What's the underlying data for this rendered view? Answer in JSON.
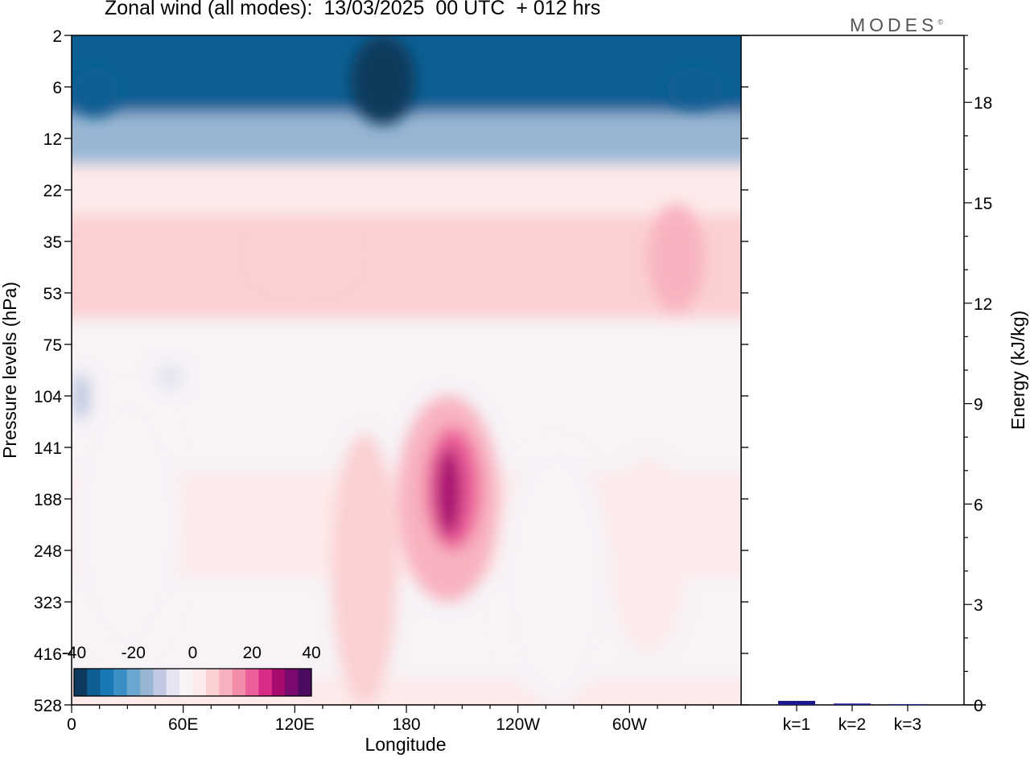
{
  "title": "Zonal wind (all modes):  13/03/2025  00 UTC  + 012 hrs",
  "brand": "MODES",
  "brand_mark": "©",
  "chart_data": [
    {
      "type": "heatmap",
      "title": "Zonal wind (all modes):  13/03/2025  00 UTC  + 012 hrs",
      "xlabel": "Longitude",
      "ylabel": "Pressure levels (hPa)",
      "x_ticks": [
        "0",
        "60E",
        "120E",
        "180",
        "120W",
        "60W"
      ],
      "y_ticks": [
        "2",
        "6",
        "12",
        "22",
        "35",
        "53",
        "75",
        "104",
        "141",
        "188",
        "248",
        "323",
        "416",
        "528"
      ],
      "colorbar_ticks": [
        "-40",
        "-20",
        "0",
        "20",
        "40"
      ],
      "colorbar_range": [
        -40,
        40
      ],
      "colorbar_colors": [
        "#0c3a5c",
        "#0f5f94",
        "#1878b5",
        "#3a8fc4",
        "#6aa6d0",
        "#98b6d4",
        "#c0c9e1",
        "#e4e5f1",
        "#f7f3f7",
        "#fdeaea",
        "#fbd0d2",
        "#f8b2bf",
        "#f28ca8",
        "#ec5f9a",
        "#d72d86",
        "#a80b70",
        "#7a0a6e",
        "#4b0b60"
      ],
      "grid": false,
      "legend": "bottom-left",
      "bands": [
        {
          "level": "2",
          "value": -33
        },
        {
          "level": "6",
          "value": -32
        },
        {
          "level": "12",
          "value": -15
        },
        {
          "level": "22",
          "value": 2
        },
        {
          "level": "35",
          "value": 6
        },
        {
          "level": "53",
          "value": 5
        },
        {
          "level": "75",
          "value": -1
        },
        {
          "level": "104",
          "value": -3
        },
        {
          "level": "141",
          "value": -1
        },
        {
          "level": "188",
          "value": 0
        },
        {
          "level": "248",
          "value": 0
        },
        {
          "level": "323",
          "value": -1
        },
        {
          "level": "416",
          "value": -1
        },
        {
          "level": "528",
          "value": 0
        }
      ],
      "features": [
        {
          "lon_from": 150,
          "lon_to": 185,
          "level_from": "2",
          "level_to": "10",
          "value": -40
        },
        {
          "lon_from": 0,
          "lon_to": 25,
          "level_from": "4",
          "level_to": "9",
          "value": -32
        },
        {
          "lon_from": 320,
          "lon_to": 350,
          "level_from": "4",
          "level_to": "8",
          "value": -35
        },
        {
          "lon_from": 175,
          "lon_to": 230,
          "level_from": "104",
          "level_to": "323",
          "value": 12
        },
        {
          "lon_from": 190,
          "lon_to": 220,
          "level_from": "125",
          "level_to": "248",
          "value": 22
        },
        {
          "lon_from": 196,
          "lon_to": 210,
          "level_from": "141",
          "level_to": "230",
          "value": 30
        },
        {
          "lon_from": 0,
          "lon_to": 10,
          "level_from": "90",
          "level_to": "120",
          "value": -12
        },
        {
          "lon_from": 45,
          "lon_to": 60,
          "level_from": "85",
          "level_to": "100",
          "value": -8
        },
        {
          "lon_from": 310,
          "lon_to": 340,
          "level_from": "25",
          "level_to": "60",
          "value": 10
        },
        {
          "lon_from": 100,
          "lon_to": 150,
          "level_from": "30",
          "level_to": "50",
          "value": 7
        },
        {
          "lon_from": 140,
          "lon_to": 175,
          "level_from": "130",
          "level_to": "528",
          "value": 5
        },
        {
          "lon_from": 0,
          "lon_to": 60,
          "level_from": "104",
          "level_to": "416",
          "value": -3
        },
        {
          "lon_from": 230,
          "lon_to": 290,
          "level_from": "141",
          "level_to": "528",
          "value": -4
        },
        {
          "lon_from": 290,
          "lon_to": 330,
          "level_from": "150",
          "level_to": "416",
          "value": 3
        }
      ]
    },
    {
      "type": "bar",
      "ylabel": "Energy (kJ/kg)",
      "categories": [
        "k=1",
        "k=2",
        "k=3"
      ],
      "values": [
        0.12,
        0.04,
        0.02
      ],
      "ylim": [
        0,
        20
      ],
      "y_ticks": [
        "0",
        "3",
        "6",
        "9",
        "12",
        "15",
        "18"
      ],
      "bar_color": "#1a1a8c"
    }
  ]
}
